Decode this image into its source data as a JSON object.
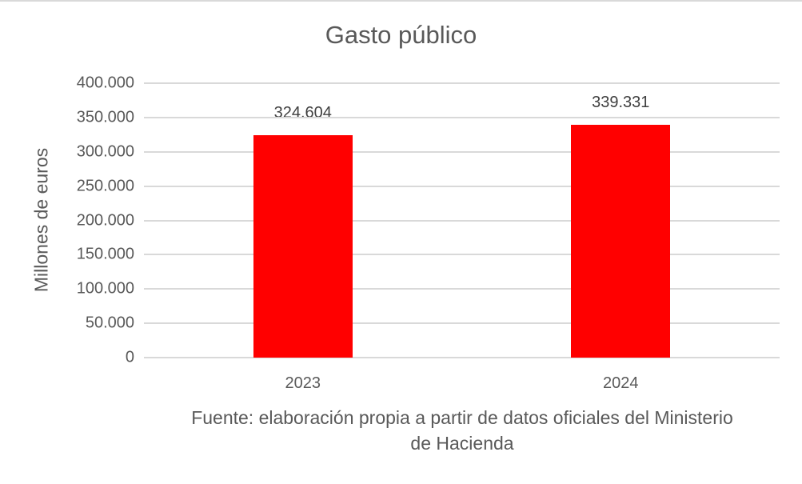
{
  "chart_data": {
    "type": "bar",
    "title": "Gasto público",
    "xlabel": "",
    "ylabel": "Millones de euros",
    "categories": [
      "2023",
      "2024"
    ],
    "values": [
      324604,
      339331
    ],
    "value_labels": [
      "324.604",
      "339.331"
    ],
    "ylim": [
      0,
      400000
    ],
    "yticks": [
      0,
      50000,
      100000,
      150000,
      200000,
      250000,
      300000,
      350000,
      400000
    ],
    "ytick_labels": [
      "0",
      "50.000",
      "100.000",
      "150.000",
      "200.000",
      "250.000",
      "300.000",
      "350.000",
      "400.000"
    ],
    "grid": true,
    "legend": null,
    "bar_color": "#ff0000",
    "source_note": "Fuente: elaboración propia a partir de datos oficiales del Ministerio de Hacienda"
  },
  "source_lines": [
    "Fuente: elaboración propia a partir de datos oficiales del Ministerio",
    "de Hacienda"
  ]
}
